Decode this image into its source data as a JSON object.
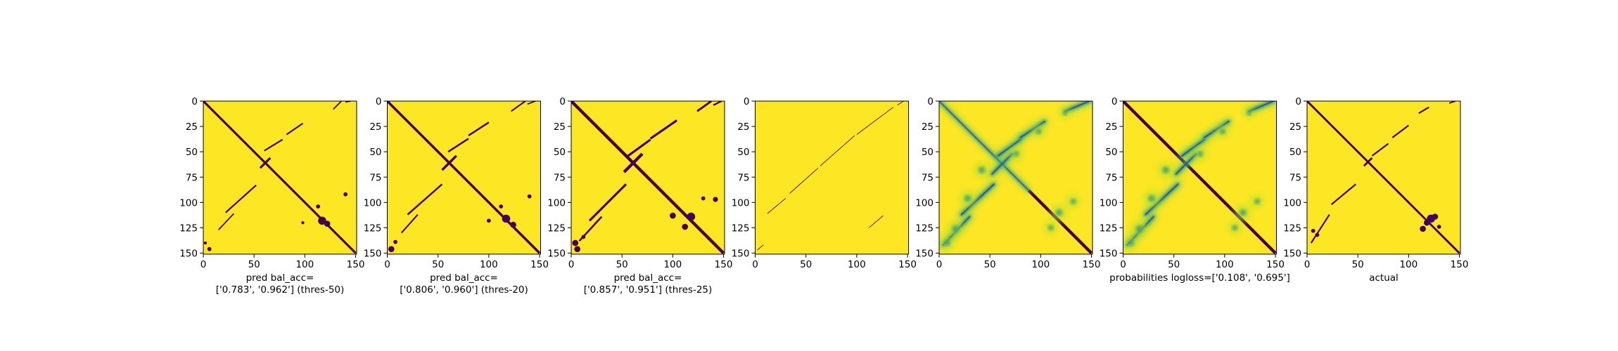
{
  "figure": {
    "background": "#ffffff",
    "colors": {
      "yellow": "#fde725",
      "purple": "#440154",
      "teal": "#21918c",
      "green": "#5ec962",
      "blue": "#3b528b",
      "light_green": "#b5de2b"
    }
  },
  "chart_data": [
    {
      "type": "heatmap",
      "id": "p1",
      "style": "binary",
      "xlabel": "pred bal_acc=\n['0.783', '0.962'] (thres-50)",
      "xticks": [
        0,
        50,
        100,
        150
      ],
      "yticks": [
        0,
        25,
        50,
        75,
        100,
        125,
        150
      ],
      "xlim": [
        0,
        151
      ],
      "ylim": [
        151,
        0
      ],
      "colormap": "viridis",
      "features": {
        "main_diagonal": {
          "from": [
            0,
            0
          ],
          "to": [
            150,
            150
          ],
          "width": 2.2
        },
        "anti_diagonal_segments": [
          {
            "from": [
              56,
              66
            ],
            "to": [
              66,
              56
            ],
            "width": 2.2
          }
        ],
        "parallel_bands": [
          {
            "from": [
              15,
              127
            ],
            "to": [
              30,
              111
            ],
            "width": 1.2
          },
          {
            "from": [
              22,
              110
            ],
            "to": [
              52,
              83
            ],
            "width": 1.5
          },
          {
            "from": [
              60,
              49
            ],
            "to": [
              78,
              38
            ],
            "width": 1.5
          },
          {
            "from": [
              82,
              33
            ],
            "to": [
              98,
              22
            ],
            "width": 1.5
          },
          {
            "from": [
              128,
              8
            ],
            "to": [
              136,
              0
            ],
            "width": 1.2
          },
          {
            "from": [
              140,
              1
            ],
            "to": [
              145,
              0
            ],
            "width": 1.2
          }
        ],
        "blobs": [
          [
            117,
            118,
            4
          ],
          [
            122,
            121,
            3
          ],
          [
            113,
            104,
            2
          ],
          [
            140,
            92,
            2
          ],
          [
            98,
            120,
            1.5
          ],
          [
            6,
            146,
            2
          ],
          [
            2,
            140,
            1.5
          ]
        ]
      }
    },
    {
      "type": "heatmap",
      "id": "p2",
      "style": "binary",
      "xlabel": "pred bal_acc=\n['0.806', '0.960'] (thres-20)",
      "xticks": [
        0,
        50,
        100,
        150
      ],
      "yticks": [
        0,
        25,
        50,
        75,
        100,
        125,
        150
      ],
      "xlim": [
        0,
        151
      ],
      "ylim": [
        151,
        0
      ],
      "colormap": "viridis",
      "features": {
        "main_diagonal": {
          "from": [
            0,
            0
          ],
          "to": [
            150,
            150
          ],
          "width": 2.4
        },
        "anti_diagonal_segments": [
          {
            "from": [
              54,
              68
            ],
            "to": [
              68,
              54
            ],
            "width": 2.4
          }
        ],
        "parallel_bands": [
          {
            "from": [
              14,
              130
            ],
            "to": [
              30,
              112
            ],
            "width": 1.4
          },
          {
            "from": [
              20,
              112
            ],
            "to": [
              54,
              82
            ],
            "width": 1.7
          },
          {
            "from": [
              60,
              50
            ],
            "to": [
              80,
              37
            ],
            "width": 1.7
          },
          {
            "from": [
              80,
              34
            ],
            "to": [
              100,
              21
            ],
            "width": 1.7
          },
          {
            "from": [
              122,
              10
            ],
            "to": [
              136,
              0
            ],
            "width": 1.4
          },
          {
            "from": [
              138,
              3
            ],
            "to": [
              146,
              0
            ],
            "width": 1.2
          }
        ],
        "blobs": [
          [
            117,
            116,
            4
          ],
          [
            124,
            122,
            3
          ],
          [
            112,
            104,
            2
          ],
          [
            140,
            94,
            2
          ],
          [
            100,
            118,
            2
          ],
          [
            4,
            146,
            3
          ],
          [
            8,
            139,
            2
          ]
        ]
      }
    },
    {
      "type": "heatmap",
      "id": "p3",
      "style": "binary",
      "xlabel": "pred bal_acc=\n['0.857', '0.951'] (thres-25)",
      "xticks": [
        0,
        50,
        100,
        150
      ],
      "yticks": [
        0,
        25,
        50,
        75,
        100,
        125,
        150
      ],
      "xlim": [
        0,
        151
      ],
      "ylim": [
        151,
        0
      ],
      "colormap": "viridis",
      "features": {
        "main_diagonal": {
          "from": [
            0,
            0
          ],
          "to": [
            150,
            150
          ],
          "width": 3
        },
        "anti_diagonal_segments": [
          {
            "from": [
              52,
              70
            ],
            "to": [
              70,
              52
            ],
            "width": 3
          }
        ],
        "parallel_bands": [
          {
            "from": [
              8,
              138
            ],
            "to": [
              30,
              114
            ],
            "width": 1.8
          },
          {
            "from": [
              18,
              118
            ],
            "to": [
              54,
              82
            ],
            "width": 2.2
          },
          {
            "from": [
              56,
              54
            ],
            "to": [
              78,
              38
            ],
            "width": 2.2
          },
          {
            "from": [
              78,
              37
            ],
            "to": [
              104,
              19
            ],
            "width": 2.2
          },
          {
            "from": [
              124,
              10
            ],
            "to": [
              138,
              0
            ],
            "width": 2
          },
          {
            "from": [
              140,
              4
            ],
            "to": [
              148,
              0
            ],
            "width": 1.6
          }
        ],
        "blobs": [
          [
            100,
            113,
            3
          ],
          [
            118,
            114,
            4
          ],
          [
            112,
            124,
            3
          ],
          [
            142,
            97,
            2.5
          ],
          [
            130,
            96,
            2
          ],
          [
            4,
            140,
            3
          ],
          [
            6,
            146,
            3
          ],
          [
            12,
            134,
            2
          ]
        ]
      }
    },
    {
      "type": "heatmap",
      "id": "p4",
      "style": "binary",
      "xlabel": "",
      "xticks": [
        0,
        50,
        100,
        150
      ],
      "yticks": [
        0,
        25,
        50,
        75,
        100,
        125,
        150
      ],
      "xlim": [
        0,
        151
      ],
      "ylim": [
        151,
        0
      ],
      "colormap": "viridis",
      "features": {
        "main_diagonal": null,
        "anti_diagonal_segments": [],
        "parallel_bands": [
          {
            "from": [
              12,
              111
            ],
            "to": [
              30,
              96
            ],
            "width": 0.6
          },
          {
            "from": [
              34,
              91
            ],
            "to": [
              62,
              66
            ],
            "width": 0.6
          },
          {
            "from": [
              64,
              64
            ],
            "to": [
              98,
              34
            ],
            "width": 0.6
          },
          {
            "from": [
              100,
              33
            ],
            "to": [
              136,
              6
            ],
            "width": 0.6
          },
          {
            "from": [
              140,
              4
            ],
            "to": [
              146,
              0
            ],
            "width": 0.6
          },
          {
            "from": [
              2,
              147
            ],
            "to": [
              8,
              142
            ],
            "width": 0.6
          },
          {
            "from": [
              112,
              125
            ],
            "to": [
              126,
              113
            ],
            "width": 0.6
          }
        ],
        "blobs": []
      }
    },
    {
      "type": "heatmap",
      "id": "p5",
      "style": "probability",
      "xlabel": "",
      "xticks": [
        0,
        50,
        100,
        150
      ],
      "yticks": [
        0,
        25,
        50,
        75,
        100,
        125,
        150
      ],
      "xlim": [
        0,
        151
      ],
      "ylim": [
        151,
        0
      ],
      "colormap": "viridis",
      "features": {
        "main_diagonal": {
          "from": [
            88,
            88
          ],
          "to": [
            150,
            150
          ],
          "width": 3
        },
        "anti_diagonal_segments": [
          {
            "from": [
              0,
              0
            ],
            "to": [
              88,
              88
            ],
            "width": 1.8
          },
          {
            "from": [
              52,
              72
            ],
            "to": [
              72,
              52
            ],
            "width": 2.5
          }
        ],
        "parallel_bands": [
          {
            "from": [
              4,
              142
            ],
            "to": [
              30,
              114
            ],
            "width": 2.5
          },
          {
            "from": [
              22,
              112
            ],
            "to": [
              54,
              82
            ],
            "width": 2.5
          },
          {
            "from": [
              58,
              54
            ],
            "to": [
              80,
              38
            ],
            "width": 2.5
          },
          {
            "from": [
              80,
              36
            ],
            "to": [
              104,
              20
            ],
            "width": 2.5
          },
          {
            "from": [
              124,
              10
            ],
            "to": [
              148,
              0
            ],
            "width": 2.5
          }
        ],
        "blobs": [
          [
            118,
            110,
            6
          ],
          [
            110,
            125,
            5
          ],
          [
            132,
            99,
            5
          ],
          [
            16,
            126,
            6
          ],
          [
            28,
            96,
            6
          ],
          [
            42,
            68,
            6
          ],
          [
            76,
            52,
            5
          ],
          [
            98,
            30,
            5
          ],
          [
            124,
            12,
            4
          ],
          [
            8,
            140,
            5
          ]
        ]
      }
    },
    {
      "type": "heatmap",
      "id": "p6",
      "style": "probability",
      "xlabel": "probabilities logloss=['0.108', '0.695']",
      "xticks": [
        0,
        50,
        100,
        150
      ],
      "yticks": [
        0,
        25,
        50,
        75,
        100,
        125,
        150
      ],
      "xlim": [
        0,
        151
      ],
      "ylim": [
        151,
        0
      ],
      "colormap": "viridis",
      "features": {
        "main_diagonal": {
          "from": [
            0,
            0
          ],
          "to": [
            150,
            150
          ],
          "width": 3
        },
        "anti_diagonal_segments": [
          {
            "from": [
              52,
              72
            ],
            "to": [
              72,
              52
            ],
            "width": 2.5
          }
        ],
        "parallel_bands": [
          {
            "from": [
              4,
              142
            ],
            "to": [
              30,
              114
            ],
            "width": 2.5
          },
          {
            "from": [
              22,
              112
            ],
            "to": [
              54,
              82
            ],
            "width": 2.5
          },
          {
            "from": [
              58,
              54
            ],
            "to": [
              80,
              38
            ],
            "width": 2.5
          },
          {
            "from": [
              80,
              36
            ],
            "to": [
              104,
              20
            ],
            "width": 2.5
          },
          {
            "from": [
              124,
              10
            ],
            "to": [
              148,
              0
            ],
            "width": 2.5
          }
        ],
        "blobs": [
          [
            118,
            110,
            6
          ],
          [
            110,
            125,
            5
          ],
          [
            132,
            99,
            5
          ],
          [
            16,
            126,
            6
          ],
          [
            28,
            96,
            6
          ],
          [
            42,
            68,
            6
          ],
          [
            76,
            52,
            5
          ],
          [
            98,
            30,
            5
          ],
          [
            124,
            12,
            4
          ],
          [
            8,
            140,
            5
          ]
        ]
      }
    },
    {
      "type": "heatmap",
      "id": "p7",
      "style": "binary",
      "xlabel": "actual",
      "xticks": [
        0,
        50,
        100,
        150
      ],
      "yticks": [
        0,
        25,
        50,
        75,
        100,
        125,
        150
      ],
      "xlim": [
        0,
        151
      ],
      "ylim": [
        151,
        0
      ],
      "colormap": "viridis",
      "features": {
        "main_diagonal": {
          "from": [
            0,
            0
          ],
          "to": [
            150,
            150
          ],
          "width": 2
        },
        "anti_diagonal_segments": [
          {
            "from": [
              56,
              64
            ],
            "to": [
              64,
              56
            ],
            "width": 2
          }
        ],
        "parallel_bands": [
          {
            "from": [
              4,
              140
            ],
            "to": [
              22,
              112
            ],
            "width": 1.5
          },
          {
            "from": [
              24,
              102
            ],
            "to": [
              48,
              82
            ],
            "width": 1.5
          },
          {
            "from": [
              64,
              54
            ],
            "to": [
              80,
              42
            ],
            "width": 1.5
          },
          {
            "from": [
              84,
              36
            ],
            "to": [
              100,
              24
            ],
            "width": 1.5
          },
          {
            "from": [
              110,
              12
            ],
            "to": [
              120,
              6
            ],
            "width": 1.5
          },
          {
            "from": [
              140,
              2
            ],
            "to": [
              146,
              0
            ],
            "width": 1.2
          }
        ],
        "blobs": [
          [
            122,
            116,
            4
          ],
          [
            126,
            114,
            3
          ],
          [
            118,
            120,
            3
          ],
          [
            114,
            126,
            3
          ],
          [
            130,
            124,
            2
          ],
          [
            6,
            128,
            2
          ],
          [
            10,
            132,
            2
          ]
        ]
      }
    }
  ]
}
